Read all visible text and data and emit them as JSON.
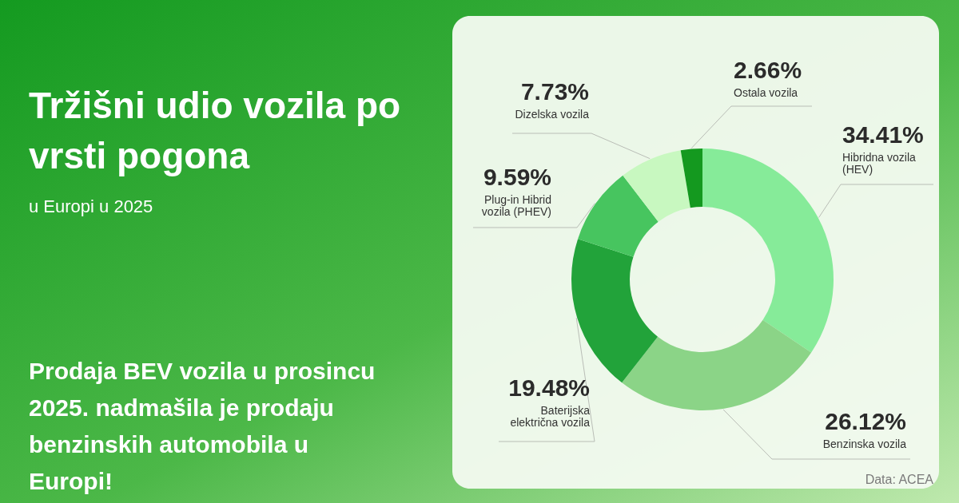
{
  "chart_data": {
    "type": "donut",
    "title": "Tržišni udio vozila po vrsti pogona",
    "subtitle": "u Europi u 2025",
    "categories": [
      "Hibridna vozila (HEV)",
      "Benzinska vozila",
      "Baterijska električna vozila",
      "Plug-in Hibrid vozila (PHEV)",
      "Dizelska vozila",
      "Ostala vozila"
    ],
    "values": [
      34.41,
      26.12,
      19.48,
      9.59,
      7.73,
      2.66
    ],
    "colors": [
      "#86eb99",
      "#8bd487",
      "#22a33a",
      "#47c55f",
      "#c8f8c0",
      "#14991f"
    ],
    "value_labels": [
      "34.41%",
      "26.12%",
      "19.48%",
      "9.59%",
      "7.73%",
      "2.66%"
    ],
    "annotations": [
      "Prodaja BEV vozila u prosincu 2025. nadmašila je prodaju benzinskih automobila u Europi!",
      "Data: ACEA"
    ]
  }
}
